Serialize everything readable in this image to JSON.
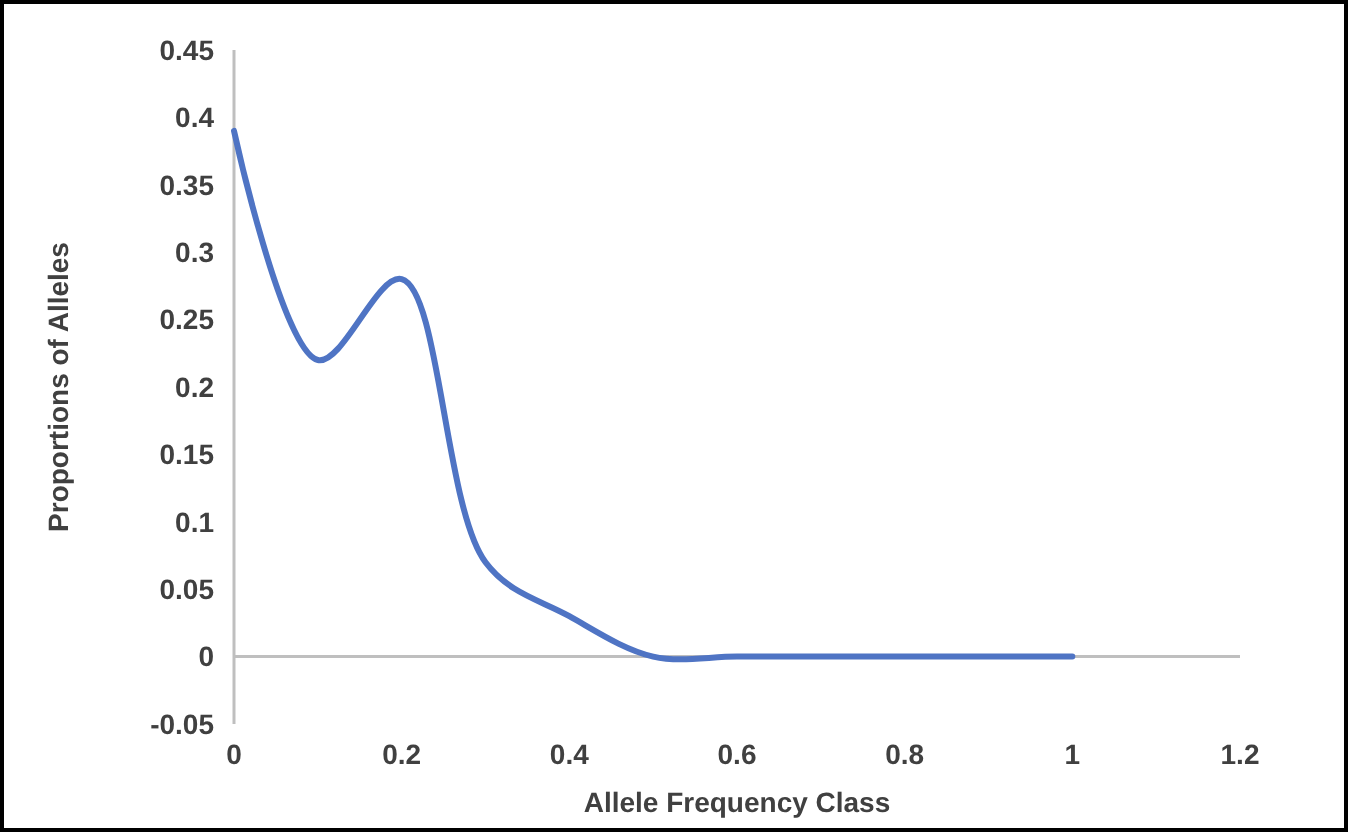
{
  "chart_data": {
    "type": "line",
    "xlabel": "Allele Frequency Class",
    "ylabel": "Proportions of Alleles",
    "x": [
      0,
      0.1,
      0.2,
      0.3,
      0.4,
      0.5,
      0.6,
      0.7,
      0.8,
      0.9,
      1
    ],
    "series": [
      {
        "color": "#4f74c4",
        "values": [
          0.39,
          0.22,
          0.28,
          0.07,
          0.03,
          0,
          0,
          0,
          0,
          0,
          0
        ]
      }
    ],
    "xlim": [
      0,
      1.2
    ],
    "xticks": [
      0,
      0.2,
      0.4,
      0.6,
      0.8,
      1,
      1.2
    ],
    "ylim": [
      -0.05,
      0.45
    ],
    "yticks": [
      -0.05,
      0,
      0.05,
      0.1,
      0.15,
      0.2,
      0.25,
      0.3,
      0.35,
      0.4,
      0.45
    ],
    "marker": "none",
    "line_style": "solid"
  }
}
